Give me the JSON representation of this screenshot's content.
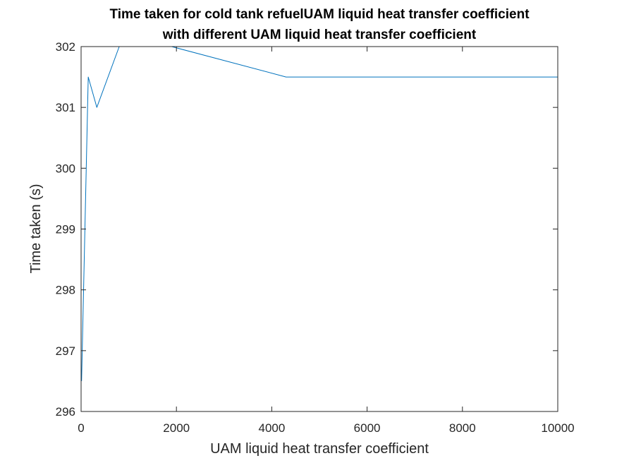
{
  "chart_data": {
    "type": "line",
    "title": "Time taken for cold tank refuelUAM liquid heat transfer coefficient",
    "subtitle": "with different UAM liquid heat transfer coefficient",
    "xlabel": "UAM liquid heat transfer coefficient",
    "ylabel": "Time taken (s)",
    "xlim": [
      0,
      10000
    ],
    "ylim": [
      296,
      302
    ],
    "x_ticks": [
      0,
      2000,
      4000,
      6000,
      8000,
      10000
    ],
    "y_ticks": [
      296,
      297,
      298,
      299,
      300,
      301,
      302
    ],
    "grid": false,
    "line_color": "#0072BD",
    "series": [
      {
        "x": [
          10,
          150,
          330,
          800,
          1900,
          4300,
          10000
        ],
        "y": [
          296.5,
          301.5,
          301.0,
          302.0,
          302.0,
          301.5,
          301.5
        ]
      }
    ]
  }
}
